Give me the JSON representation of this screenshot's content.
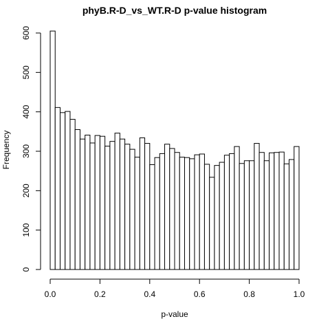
{
  "chart_data": {
    "type": "bar",
    "title": "phyB.R-D_vs_WT.R-D p-value histogram",
    "xlabel": "p-value",
    "ylabel": "Frequency",
    "xlim": [
      0,
      1
    ],
    "ylim": [
      0,
      600
    ],
    "x_ticks": [
      0.0,
      0.2,
      0.4,
      0.6,
      0.8,
      1.0
    ],
    "x_tick_labels": [
      "0.0",
      "0.2",
      "0.4",
      "0.6",
      "0.8",
      "1.0"
    ],
    "y_ticks": [
      0,
      100,
      200,
      300,
      400,
      500,
      600
    ],
    "y_tick_labels": [
      "0",
      "100",
      "200",
      "300",
      "400",
      "500",
      "600"
    ],
    "bin_width": 0.02,
    "bin_starts": [
      0.0,
      0.02,
      0.04,
      0.06,
      0.08,
      0.1,
      0.12,
      0.14,
      0.16,
      0.18,
      0.2,
      0.22,
      0.24,
      0.26,
      0.28,
      0.3,
      0.32,
      0.34,
      0.36,
      0.38,
      0.4,
      0.42,
      0.44,
      0.46,
      0.48,
      0.5,
      0.52,
      0.54,
      0.56,
      0.58,
      0.6,
      0.62,
      0.64,
      0.66,
      0.68,
      0.7,
      0.72,
      0.74,
      0.76,
      0.78,
      0.8,
      0.82,
      0.84,
      0.86,
      0.88,
      0.9,
      0.92,
      0.94,
      0.96,
      0.98
    ],
    "values": [
      605,
      411,
      398,
      401,
      381,
      355,
      331,
      341,
      321,
      340,
      338,
      313,
      325,
      346,
      331,
      318,
      305,
      285,
      334,
      320,
      266,
      284,
      294,
      318,
      307,
      297,
      285,
      284,
      281,
      291,
      293,
      267,
      234,
      264,
      272,
      290,
      294,
      312,
      269,
      276,
      276,
      320,
      297,
      276,
      296,
      297,
      298,
      268,
      279,
      312
    ]
  }
}
